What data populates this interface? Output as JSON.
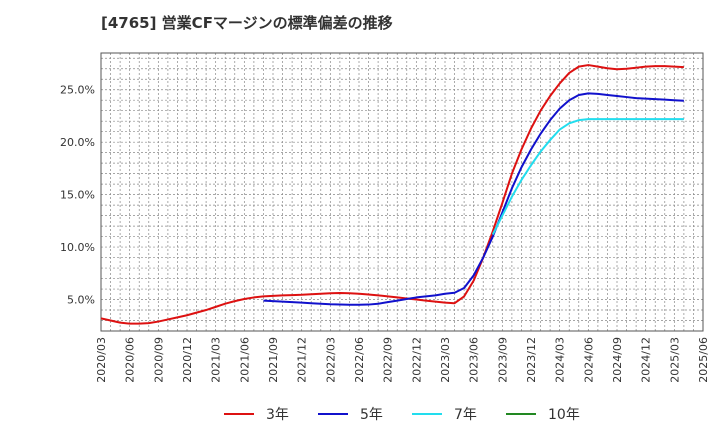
{
  "chart_data": {
    "type": "line",
    "title": "[4765]  営業CFマージンの標準偏差の推移",
    "xlabel": "",
    "ylabel": "",
    "x_range": [
      "2020-03",
      "2025-06"
    ],
    "ylim": [
      2.0,
      28.5
    ],
    "y_ticks": [
      5,
      10,
      15,
      20,
      25
    ],
    "y_tick_labels": [
      "5.0%",
      "10.0%",
      "15.0%",
      "20.0%",
      "25.0%"
    ],
    "x_ticks": [
      "2020/03",
      "2020/06",
      "2020/09",
      "2020/12",
      "2021/03",
      "2021/06",
      "2021/09",
      "2021/12",
      "2022/03",
      "2022/06",
      "2022/09",
      "2022/12",
      "2023/03",
      "2023/06",
      "2023/09",
      "2023/12",
      "2024/03",
      "2024/06",
      "2024/09",
      "2024/12",
      "2025/03",
      "2025/06"
    ],
    "grid": true,
    "legend_position": "bottom",
    "series": [
      {
        "name": "3年",
        "color": "#dd1111",
        "points": [
          [
            "2020-03",
            3.2
          ],
          [
            "2020-04",
            3.0
          ],
          [
            "2020-05",
            2.8
          ],
          [
            "2020-06",
            2.7
          ],
          [
            "2020-07",
            2.7
          ],
          [
            "2020-08",
            2.75
          ],
          [
            "2020-09",
            2.9
          ],
          [
            "2020-10",
            3.1
          ],
          [
            "2020-11",
            3.3
          ],
          [
            "2020-12",
            3.5
          ],
          [
            "2021-01",
            3.75
          ],
          [
            "2021-02",
            4.0
          ],
          [
            "2021-03",
            4.3
          ],
          [
            "2021-04",
            4.6
          ],
          [
            "2021-05",
            4.85
          ],
          [
            "2021-06",
            5.05
          ],
          [
            "2021-07",
            5.2
          ],
          [
            "2021-08",
            5.3
          ],
          [
            "2021-09",
            5.35
          ],
          [
            "2021-10",
            5.4
          ],
          [
            "2021-11",
            5.42
          ],
          [
            "2021-12",
            5.45
          ],
          [
            "2022-01",
            5.5
          ],
          [
            "2022-02",
            5.55
          ],
          [
            "2022-03",
            5.6
          ],
          [
            "2022-04",
            5.62
          ],
          [
            "2022-05",
            5.6
          ],
          [
            "2022-06",
            5.55
          ],
          [
            "2022-07",
            5.48
          ],
          [
            "2022-08",
            5.4
          ],
          [
            "2022-09",
            5.3
          ],
          [
            "2022-10",
            5.2
          ],
          [
            "2022-11",
            5.1
          ],
          [
            "2022-12",
            5.0
          ],
          [
            "2023-01",
            4.9
          ],
          [
            "2023-02",
            4.8
          ],
          [
            "2023-03",
            4.7
          ],
          [
            "2023-04",
            4.65
          ],
          [
            "2023-05",
            5.3
          ],
          [
            "2023-06",
            6.8
          ],
          [
            "2023-07",
            9.0
          ],
          [
            "2023-08",
            11.5
          ],
          [
            "2023-09",
            14.2
          ],
          [
            "2023-10",
            17.0
          ],
          [
            "2023-11",
            19.3
          ],
          [
            "2023-12",
            21.3
          ],
          [
            "2024-01",
            23.0
          ],
          [
            "2024-02",
            24.4
          ],
          [
            "2024-03",
            25.6
          ],
          [
            "2024-04",
            26.6
          ],
          [
            "2024-05",
            27.2
          ],
          [
            "2024-06",
            27.35
          ],
          [
            "2024-07",
            27.2
          ],
          [
            "2024-08",
            27.05
          ],
          [
            "2024-09",
            26.95
          ],
          [
            "2024-10",
            27.0
          ],
          [
            "2024-11",
            27.1
          ],
          [
            "2024-12",
            27.2
          ],
          [
            "2025-01",
            27.25
          ],
          [
            "2025-02",
            27.25
          ],
          [
            "2025-03",
            27.2
          ],
          [
            "2025-04",
            27.15
          ]
        ]
      },
      {
        "name": "5年",
        "color": "#1111cc",
        "points": [
          [
            "2021-08",
            4.9
          ],
          [
            "2021-09",
            4.85
          ],
          [
            "2021-10",
            4.8
          ],
          [
            "2021-11",
            4.75
          ],
          [
            "2021-12",
            4.7
          ],
          [
            "2022-01",
            4.65
          ],
          [
            "2022-02",
            4.6
          ],
          [
            "2022-03",
            4.55
          ],
          [
            "2022-04",
            4.52
          ],
          [
            "2022-05",
            4.5
          ],
          [
            "2022-06",
            4.5
          ],
          [
            "2022-07",
            4.52
          ],
          [
            "2022-08",
            4.6
          ],
          [
            "2022-09",
            4.75
          ],
          [
            "2022-10",
            4.9
          ],
          [
            "2022-11",
            5.05
          ],
          [
            "2022-12",
            5.2
          ],
          [
            "2023-01",
            5.3
          ],
          [
            "2023-02",
            5.4
          ],
          [
            "2023-03",
            5.55
          ],
          [
            "2023-04",
            5.65
          ],
          [
            "2023-05",
            6.1
          ],
          [
            "2023-06",
            7.3
          ],
          [
            "2023-07",
            9.0
          ],
          [
            "2023-08",
            11.0
          ],
          [
            "2023-09",
            13.3
          ],
          [
            "2023-10",
            15.6
          ],
          [
            "2023-11",
            17.6
          ],
          [
            "2023-12",
            19.3
          ],
          [
            "2024-01",
            20.8
          ],
          [
            "2024-02",
            22.1
          ],
          [
            "2024-03",
            23.2
          ],
          [
            "2024-04",
            24.0
          ],
          [
            "2024-05",
            24.5
          ],
          [
            "2024-06",
            24.65
          ],
          [
            "2024-07",
            24.6
          ],
          [
            "2024-08",
            24.5
          ],
          [
            "2024-09",
            24.4
          ],
          [
            "2024-10",
            24.3
          ],
          [
            "2024-11",
            24.2
          ],
          [
            "2024-12",
            24.15
          ],
          [
            "2025-01",
            24.1
          ],
          [
            "2025-02",
            24.05
          ],
          [
            "2025-03",
            24.0
          ],
          [
            "2025-04",
            23.95
          ]
        ]
      },
      {
        "name": "7年",
        "color": "#22ddee",
        "points": [
          [
            "2023-08",
            11.2
          ],
          [
            "2023-09",
            13.0
          ],
          [
            "2023-10",
            14.8
          ],
          [
            "2023-11",
            16.4
          ],
          [
            "2023-12",
            17.8
          ],
          [
            "2024-01",
            19.1
          ],
          [
            "2024-02",
            20.2
          ],
          [
            "2024-03",
            21.2
          ],
          [
            "2024-04",
            21.8
          ],
          [
            "2024-05",
            22.1
          ],
          [
            "2024-06",
            22.2
          ],
          [
            "2024-07",
            22.2
          ],
          [
            "2024-08",
            22.2
          ],
          [
            "2024-09",
            22.2
          ],
          [
            "2024-10",
            22.2
          ],
          [
            "2024-11",
            22.2
          ],
          [
            "2024-12",
            22.2
          ],
          [
            "2025-01",
            22.2
          ],
          [
            "2025-02",
            22.2
          ],
          [
            "2025-03",
            22.2
          ],
          [
            "2025-04",
            22.2
          ]
        ]
      },
      {
        "name": "10年",
        "color": "#228822",
        "points": []
      }
    ]
  }
}
